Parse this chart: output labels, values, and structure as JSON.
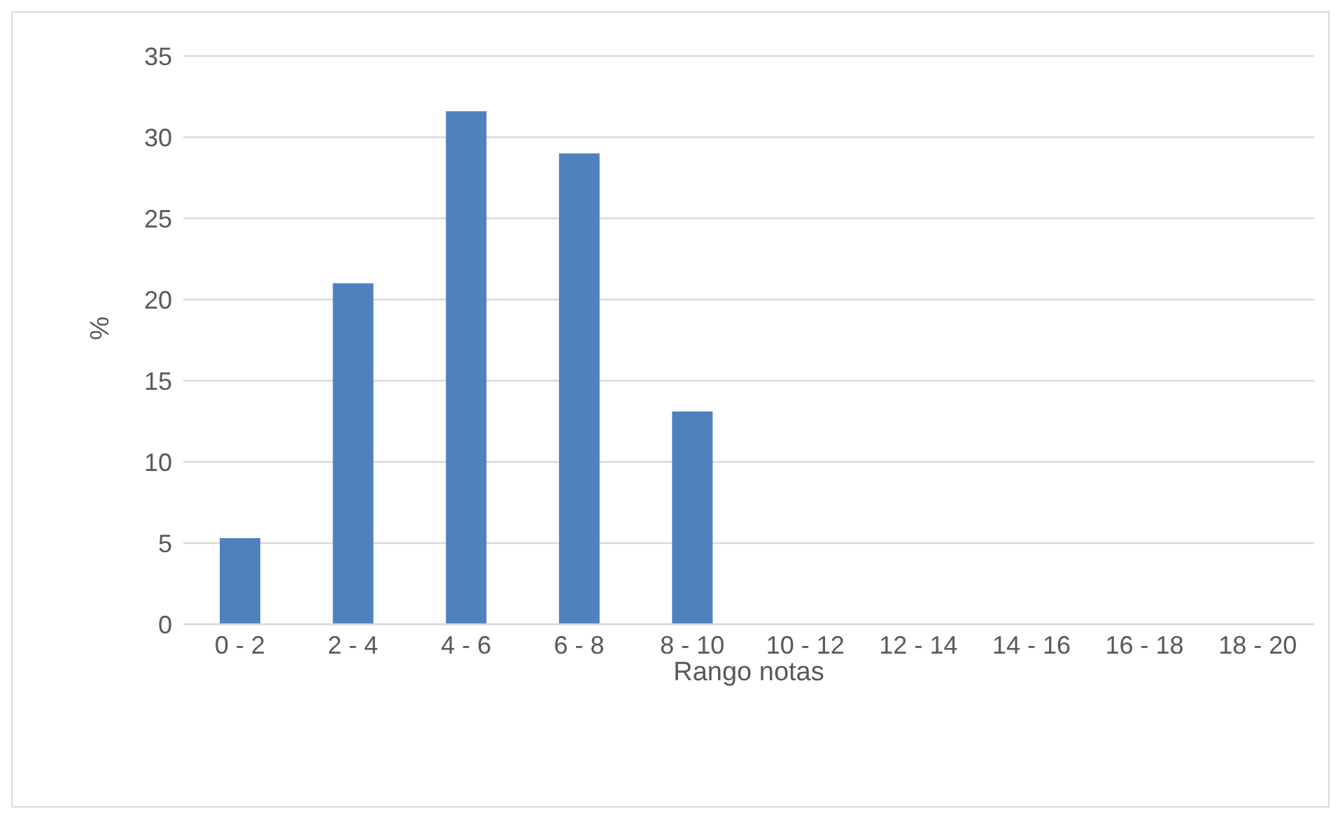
{
  "chart_data": {
    "type": "bar",
    "xlabel": "Rango notas",
    "ylabel": "%",
    "categories": [
      "0 - 2",
      "2 - 4",
      "4 - 6",
      "6 - 8",
      "8 - 10",
      "10 - 12",
      "12 - 14",
      "14 - 16",
      "16 - 18",
      "18 -  20"
    ],
    "values": [
      5.3,
      21.0,
      31.6,
      29.0,
      13.1,
      0,
      0,
      0,
      0,
      0
    ],
    "color": "#4f81bd",
    "ylim": [
      0,
      35
    ],
    "yticks": [
      0,
      5,
      10,
      15,
      20,
      25,
      30,
      35
    ],
    "grid": "y"
  }
}
